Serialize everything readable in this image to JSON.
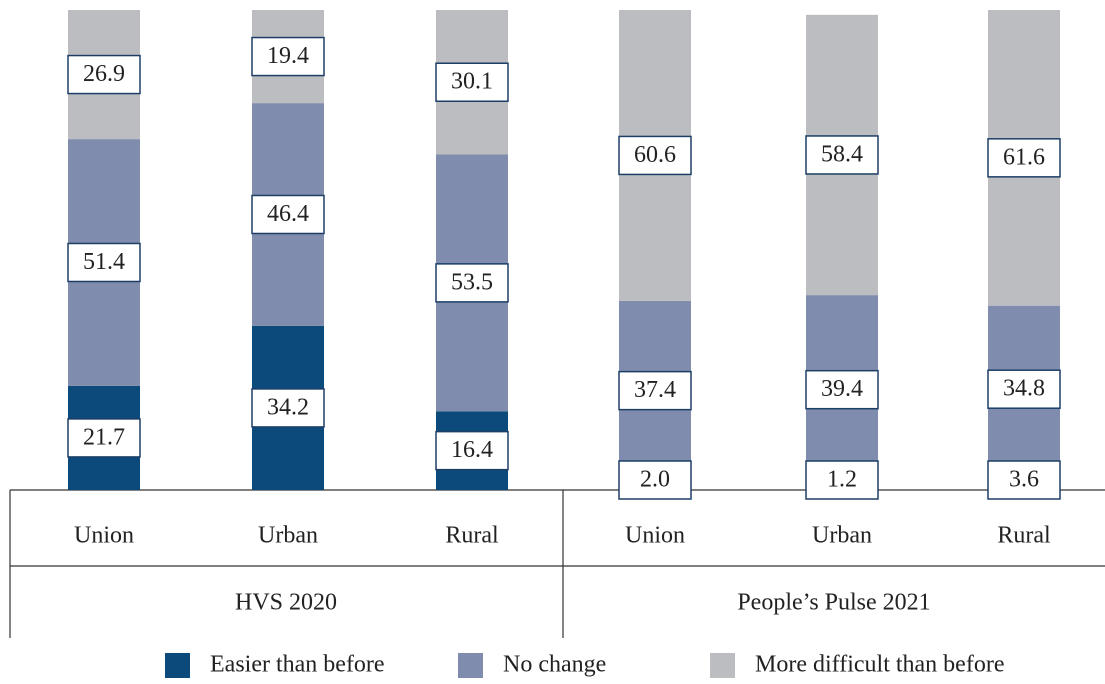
{
  "chart_data": {
    "type": "stacked_bar",
    "groups": [
      {
        "name": "HVS 2020",
        "categories": [
          "Union",
          "Urban",
          "Rural"
        ]
      },
      {
        "name": "People’s Pulse 2021",
        "categories": [
          "Union",
          "Urban",
          "Rural"
        ]
      }
    ],
    "ylim": [
      0,
      100
    ],
    "series": [
      {
        "name": "Easier than before",
        "color": "#0d4a7c",
        "values": [
          21.7,
          34.2,
          16.4,
          2.0,
          1.2,
          3.6
        ],
        "value_labels": [
          "21.7",
          "34.2",
          "16.4",
          "2.0",
          "1.2",
          "3.6"
        ]
      },
      {
        "name": "No change",
        "color": "#7f8cad",
        "values": [
          51.4,
          46.4,
          53.5,
          37.4,
          39.4,
          34.8
        ],
        "value_labels": [
          "51.4",
          "46.4",
          "53.5",
          "37.4",
          "39.4",
          "34.8"
        ]
      },
      {
        "name": "More difficult than before",
        "color": "#bcbdc1",
        "values": [
          26.9,
          19.4,
          30.1,
          60.6,
          58.4,
          61.6
        ],
        "value_labels": [
          "26.9",
          "19.4",
          "30.1",
          "60.6",
          "58.4",
          "61.6"
        ]
      }
    ]
  }
}
